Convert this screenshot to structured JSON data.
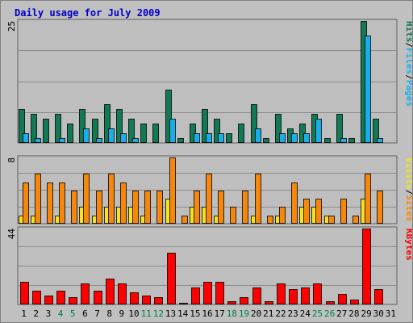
{
  "colors": {
    "background": "#c0c0c0",
    "plot_bg": "#bebebe",
    "gridline": "#8c8c8c",
    "title": "#0000c8",
    "hits": "#117a55",
    "files": "#1aaee8",
    "pages": "#1aaee8",
    "visits": "#f6e31c",
    "sites": "#f7870a",
    "kbytes": "#ff0000",
    "weekend_label": "#00804a",
    "weekday_label": "#000000"
  },
  "chart_data": {
    "type": "bar",
    "title": "Daily usage for July 2009",
    "days": [
      "1",
      "2",
      "3",
      "4",
      "5",
      "6",
      "7",
      "8",
      "9",
      "10",
      "11",
      "12",
      "13",
      "14",
      "15",
      "16",
      "17",
      "18",
      "19",
      "20",
      "21",
      "22",
      "23",
      "24",
      "25",
      "26",
      "27",
      "28",
      "29",
      "30",
      "31"
    ],
    "weekend_days": [
      "4",
      "5",
      "11",
      "12",
      "18",
      "19",
      "25",
      "26"
    ],
    "panels": [
      {
        "id": "hits-files",
        "max_label": "25",
        "ylim": [
          0,
          25
        ],
        "axis_label_parts": [
          {
            "text": "Hits",
            "color": "#117a55"
          },
          {
            "text": "/",
            "color": "#000000"
          },
          {
            "text": "Files",
            "color": "#1aaee8"
          },
          {
            "text": "/",
            "color": "#000000"
          },
          {
            "text": "Pages",
            "color": "#1aaee8"
          }
        ],
        "series": [
          {
            "name": "Hits",
            "color": "#117a55",
            "values": [
              7,
              6,
              5,
              6,
              4,
              7,
              5,
              8,
              7,
              5,
              4,
              4,
              11,
              1,
              4,
              7,
              5,
              2,
              4,
              8,
              1,
              6,
              3,
              4,
              6,
              1,
              6,
              1,
              25,
              5,
              0
            ]
          },
          {
            "name": "Files",
            "color": "#1aaee8",
            "values": [
              2,
              1,
              0,
              1,
              0,
              3,
              1,
              3,
              2,
              1,
              0,
              0,
              5,
              0,
              2,
              2,
              2,
              0,
              0,
              3,
              0,
              2,
              2,
              2,
              5,
              0,
              1,
              0,
              22,
              1,
              0
            ]
          }
        ]
      },
      {
        "id": "visits-sites",
        "max_label": "8",
        "ylim": [
          0,
          8
        ],
        "axis_label_parts": [
          {
            "text": "Visits",
            "color": "#f6e31c"
          },
          {
            "text": "/",
            "color": "#000000"
          },
          {
            "text": "Sites",
            "color": "#f7870a"
          }
        ],
        "series": [
          {
            "name": "Visits",
            "color": "#f6e31c",
            "values": [
              1,
              1,
              0,
              1,
              0,
              2,
              1,
              2,
              2,
              2,
              1,
              0,
              3,
              0,
              2,
              2,
              1,
              0,
              0,
              1,
              0,
              1,
              0,
              2,
              2,
              1,
              0,
              0,
              3,
              0,
              0
            ]
          },
          {
            "name": "Sites",
            "color": "#f7870a",
            "values": [
              5,
              6,
              5,
              5,
              4,
              6,
              4,
              6,
              5,
              4,
              4,
              4,
              8,
              1,
              4,
              6,
              4,
              2,
              4,
              6,
              1,
              2,
              5,
              3,
              3,
              1,
              3,
              1,
              6,
              4,
              0
            ]
          }
        ]
      },
      {
        "id": "kbytes",
        "max_label": "44",
        "ylim": [
          0,
          44
        ],
        "axis_label_parts": [
          {
            "text": "KBytes",
            "color": "#ff0000"
          }
        ],
        "series": [
          {
            "name": "KBytes",
            "color": "#ff0000",
            "values": [
              13,
              8,
              5,
              8,
              4,
              12,
              8,
              15,
              12,
              7,
              5,
              4,
              30,
              1,
              10,
              13,
              13,
              2,
              4,
              10,
              2,
              12,
              9,
              10,
              12,
              2,
              6,
              3,
              44,
              9,
              0
            ]
          }
        ]
      }
    ]
  }
}
